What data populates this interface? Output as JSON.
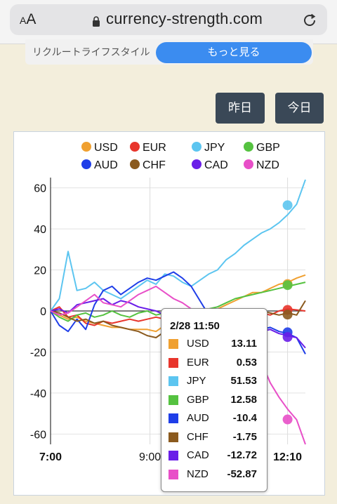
{
  "browser": {
    "aa_label_small": "A",
    "aa_label_big": "A",
    "url": "currency-strength.com"
  },
  "ad": {
    "text": "リクルートライフスタイル",
    "button_label": "もっと見る"
  },
  "buttons": {
    "yesterday": "昨日",
    "today": "今日"
  },
  "chart_data": {
    "type": "line",
    "title": "",
    "xlabel": "",
    "ylabel": "",
    "x_ticks": [
      "7:00",
      "9:00",
      "12:10"
    ],
    "y_ticks": [
      60,
      40,
      20,
      0,
      -20,
      -40,
      -60
    ],
    "ylim": [
      -65,
      65
    ],
    "grid": true,
    "legend_placement": "top",
    "series": [
      {
        "name": "USD",
        "color": "#f0a030",
        "values": [
          0,
          -2,
          -4,
          -3,
          -5,
          -6,
          -7,
          -8,
          -8,
          -9,
          -9,
          -9,
          -10,
          -7,
          -6,
          -5,
          -4,
          -2,
          0,
          1,
          3,
          5,
          7,
          9,
          9,
          11,
          13,
          14,
          16,
          17.5
        ]
      },
      {
        "name": "EUR",
        "color": "#e8352c",
        "values": [
          0,
          2,
          -3,
          -2,
          -6,
          -7,
          -5,
          -6,
          -5,
          -4,
          -5,
          -4,
          -3,
          -4,
          -5,
          -6,
          -5,
          -3,
          -4,
          -3,
          -2,
          -2,
          -3,
          -1,
          -1,
          -2,
          0,
          1,
          0.5,
          0
        ]
      },
      {
        "name": "JPY",
        "color": "#5cc5f0",
        "values": [
          0,
          6,
          29,
          10,
          11,
          14,
          10,
          8,
          6,
          9,
          12,
          15,
          13,
          18,
          17,
          14,
          12,
          15,
          18,
          20,
          25,
          28,
          32,
          35,
          38,
          40,
          43,
          47,
          52,
          64
        ]
      },
      {
        "name": "GBP",
        "color": "#55c240",
        "values": [
          0,
          -3,
          -5,
          -2,
          -1,
          -3,
          -2,
          0,
          -2,
          -3,
          -1,
          0,
          -2,
          -1,
          0,
          1,
          0,
          -1,
          1,
          2,
          4,
          6,
          7,
          8,
          9,
          10,
          11,
          12,
          13,
          14
        ]
      },
      {
        "name": "AUD",
        "color": "#1f3ee8",
        "values": [
          0,
          -7,
          -10,
          -4,
          -9,
          3,
          10,
          12,
          8,
          11,
          14,
          16,
          15,
          17,
          19,
          16,
          12,
          5,
          -2,
          -5,
          -3,
          -6,
          -8,
          -7,
          -9,
          -8,
          -10,
          -11,
          -13,
          -21
        ]
      },
      {
        "name": "CHF",
        "color": "#8b5a1e",
        "values": [
          0,
          -1,
          -3,
          -5,
          -4,
          -6,
          -5,
          -7,
          -8,
          -9,
          -10,
          -12,
          -13,
          -10,
          -9,
          -8,
          -9,
          -7,
          -6,
          -4,
          -3,
          -1,
          0,
          -1,
          0,
          -1,
          -2,
          -1,
          -2,
          5
        ]
      },
      {
        "name": "CAD",
        "color": "#6a1ee8",
        "values": [
          0,
          1,
          -1,
          3,
          4,
          5,
          6,
          3,
          5,
          4,
          2,
          1,
          0,
          -2,
          -3,
          -4,
          -5,
          -4,
          -3,
          -5,
          -6,
          -8,
          -7,
          -9,
          -10,
          -9,
          -11,
          -12,
          -13,
          -18
        ]
      },
      {
        "name": "NZD",
        "color": "#e84fc8",
        "values": [
          0,
          -2,
          -1,
          2,
          5,
          8,
          4,
          3,
          2,
          5,
          8,
          10,
          12,
          9,
          6,
          4,
          1,
          -1,
          -3,
          -5,
          -7,
          -10,
          -13,
          -18,
          -25,
          -35,
          -42,
          -48,
          -53,
          -65
        ]
      }
    ],
    "tooltip": {
      "title": "2/28 11:50",
      "rows": [
        {
          "name": "USD",
          "value": "13.11"
        },
        {
          "name": "EUR",
          "value": "0.53"
        },
        {
          "name": "JPY",
          "value": "51.53"
        },
        {
          "name": "GBP",
          "value": "12.58"
        },
        {
          "name": "AUD",
          "value": "-10.4"
        },
        {
          "name": "CHF",
          "value": "-1.75"
        },
        {
          "name": "CAD",
          "value": "-12.72"
        },
        {
          "name": "NZD",
          "value": "-52.87"
        }
      ]
    }
  },
  "icons": {
    "lock": "lock-icon",
    "reload": "reload-icon"
  }
}
